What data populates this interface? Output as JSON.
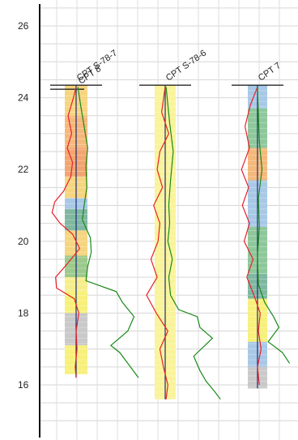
{
  "chart_data": {
    "type": "line",
    "y_axis": {
      "ticks": [
        16,
        18,
        20,
        22,
        24,
        26
      ],
      "range": [
        14.8,
        26.4
      ]
    },
    "columns": [
      {
        "name": "CPT S-78-7",
        "overlapping_label": "CPT 8",
        "top": 24.35,
        "bottom": 16.2,
        "color_bands": [
          {
            "from": 24.35,
            "to": 23.5,
            "color": "#f6d580"
          },
          {
            "from": 23.5,
            "to": 22.6,
            "color": "#f5b87a"
          },
          {
            "from": 22.6,
            "to": 21.8,
            "color": "#f3a56f"
          },
          {
            "from": 21.8,
            "to": 21.2,
            "color": "#f6d580"
          },
          {
            "from": 21.2,
            "to": 20.9,
            "color": "#a8c8e6"
          },
          {
            "from": 20.9,
            "to": 20.3,
            "color": "#7fb7a0"
          },
          {
            "from": 20.3,
            "to": 19.6,
            "color": "#f6d580"
          },
          {
            "from": 19.6,
            "to": 19.0,
            "color": "#9cc98c"
          },
          {
            "from": 19.0,
            "to": 18.6,
            "color": "#f7ee8a"
          },
          {
            "from": 18.6,
            "to": 18.0,
            "color": "#f7f07a"
          },
          {
            "from": 18.0,
            "to": 17.1,
            "color": "#c9c9c9"
          },
          {
            "from": 17.1,
            "to": 16.3,
            "color": "#f7f07a"
          }
        ],
        "curves": [
          {
            "series": "red",
            "points": [
              [
                24.3,
                0.0
              ],
              [
                24.0,
                -0.3
              ],
              [
                23.5,
                -0.9
              ],
              [
                23.0,
                -0.5
              ],
              [
                22.6,
                -1.0
              ],
              [
                22.2,
                -0.4
              ],
              [
                21.8,
                -0.6
              ],
              [
                21.4,
                -1.4
              ],
              [
                21.1,
                -2.4
              ],
              [
                20.8,
                -2.7
              ],
              [
                20.5,
                -1.8
              ],
              [
                20.2,
                -0.4
              ],
              [
                19.8,
                0.4
              ],
              [
                19.4,
                -0.9
              ],
              [
                19.0,
                -2.3
              ],
              [
                18.7,
                -2.2
              ],
              [
                18.4,
                -0.2
              ],
              [
                18.0,
                0.3
              ],
              [
                17.5,
                0.0
              ],
              [
                17.0,
                0.1
              ],
              [
                16.5,
                -0.1
              ],
              [
                16.2,
                0.0
              ]
            ]
          },
          {
            "series": "green",
            "points": [
              [
                24.3,
                0.2
              ],
              [
                23.8,
                0.5
              ],
              [
                23.2,
                0.9
              ],
              [
                22.6,
                1.3
              ],
              [
                22.1,
                1.1
              ],
              [
                21.5,
                1.2
              ],
              [
                21.0,
                0.9
              ],
              [
                20.6,
                0.7
              ],
              [
                20.1,
                1.6
              ],
              [
                19.7,
                1.7
              ],
              [
                19.3,
                1.3
              ],
              [
                18.9,
                1.1
              ],
              [
                18.6,
                4.5
              ],
              [
                18.3,
                5.2
              ],
              [
                17.9,
                6.5
              ],
              [
                17.5,
                5.8
              ],
              [
                17.1,
                3.9
              ],
              [
                16.9,
                4.9
              ],
              [
                16.6,
                5.8
              ],
              [
                16.2,
                7.0
              ]
            ]
          }
        ]
      },
      {
        "name": "CPT S-78-6",
        "top": 24.35,
        "bottom": 15.6,
        "color_bands": [
          {
            "from": 24.35,
            "to": 15.6,
            "color": "#f9f39a"
          }
        ],
        "curves": [
          {
            "series": "red",
            "points": [
              [
                24.3,
                0.0
              ],
              [
                23.6,
                -0.4
              ],
              [
                23.0,
                0.4
              ],
              [
                22.5,
                -0.6
              ],
              [
                22.0,
                -0.9
              ],
              [
                21.5,
                -0.3
              ],
              [
                21.0,
                -1.3
              ],
              [
                20.5,
                -0.6
              ],
              [
                20.0,
                -0.8
              ],
              [
                19.5,
                -1.6
              ],
              [
                19.0,
                -0.9
              ],
              [
                18.5,
                -2.1
              ],
              [
                18.0,
                -1.0
              ],
              [
                17.5,
                0.3
              ],
              [
                17.0,
                -0.6
              ],
              [
                16.5,
                -0.2
              ],
              [
                16.0,
                0.3
              ],
              [
                15.6,
                0.1
              ]
            ]
          },
          {
            "series": "green",
            "points": [
              [
                24.3,
                0.1
              ],
              [
                23.3,
                0.5
              ],
              [
                22.5,
                0.9
              ],
              [
                21.7,
                0.6
              ],
              [
                21.0,
                0.4
              ],
              [
                20.5,
                0.5
              ],
              [
                20.0,
                0.3
              ],
              [
                19.5,
                0.8
              ],
              [
                19.0,
                0.4
              ],
              [
                18.5,
                0.6
              ],
              [
                18.1,
                1.5
              ],
              [
                17.9,
                3.6
              ],
              [
                17.6,
                3.9
              ],
              [
                17.3,
                5.3
              ],
              [
                16.8,
                3.2
              ],
              [
                16.4,
                3.9
              ],
              [
                16.1,
                4.6
              ],
              [
                15.8,
                5.6
              ],
              [
                15.6,
                6.2
              ]
            ]
          }
        ]
      },
      {
        "name": "CPT 7",
        "top": 24.35,
        "bottom": 15.9,
        "color_bands": [
          {
            "from": 24.35,
            "to": 23.7,
            "color": "#a8c8e6"
          },
          {
            "from": 23.7,
            "to": 22.6,
            "color": "#8ec79b"
          },
          {
            "from": 22.6,
            "to": 21.7,
            "color": "#f5b87a"
          },
          {
            "from": 21.7,
            "to": 20.4,
            "color": "#a8c8e6"
          },
          {
            "from": 20.4,
            "to": 19.1,
            "color": "#8ec79b"
          },
          {
            "from": 19.1,
            "to": 18.4,
            "color": "#7fb7a0"
          },
          {
            "from": 18.4,
            "to": 17.2,
            "color": "#f7f07a"
          },
          {
            "from": 17.2,
            "to": 16.5,
            "color": "#a8c8e6"
          },
          {
            "from": 16.5,
            "to": 15.9,
            "color": "#c9c9c9"
          }
        ],
        "curves": [
          {
            "series": "red",
            "points": [
              [
                24.3,
                0.0
              ],
              [
                23.8,
                -0.8
              ],
              [
                23.2,
                -1.4
              ],
              [
                22.6,
                -0.9
              ],
              [
                22.0,
                -1.8
              ],
              [
                21.5,
                -1.0
              ],
              [
                21.0,
                -1.7
              ],
              [
                20.5,
                -0.9
              ],
              [
                20.0,
                -1.5
              ],
              [
                19.5,
                -0.5
              ],
              [
                19.0,
                -1.2
              ],
              [
                18.5,
                -0.4
              ],
              [
                18.0,
                0.3
              ],
              [
                17.5,
                0.1
              ],
              [
                17.0,
                0.4
              ],
              [
                16.5,
                0.0
              ],
              [
                16.0,
                0.2
              ]
            ]
          },
          {
            "series": "green",
            "points": [
              [
                24.3,
                0.0
              ],
              [
                23.5,
                0.1
              ],
              [
                22.8,
                0.2
              ],
              [
                22.0,
                0.5
              ],
              [
                21.2,
                0.1
              ],
              [
                20.4,
                0.2
              ],
              [
                19.6,
                0.0
              ],
              [
                18.8,
                0.1
              ],
              [
                18.3,
                0.8
              ],
              [
                17.9,
                1.8
              ],
              [
                17.6,
                2.4
              ],
              [
                17.2,
                1.2
              ],
              [
                16.9,
                2.8
              ],
              [
                16.6,
                3.6
              ]
            ]
          }
        ]
      }
    ]
  }
}
